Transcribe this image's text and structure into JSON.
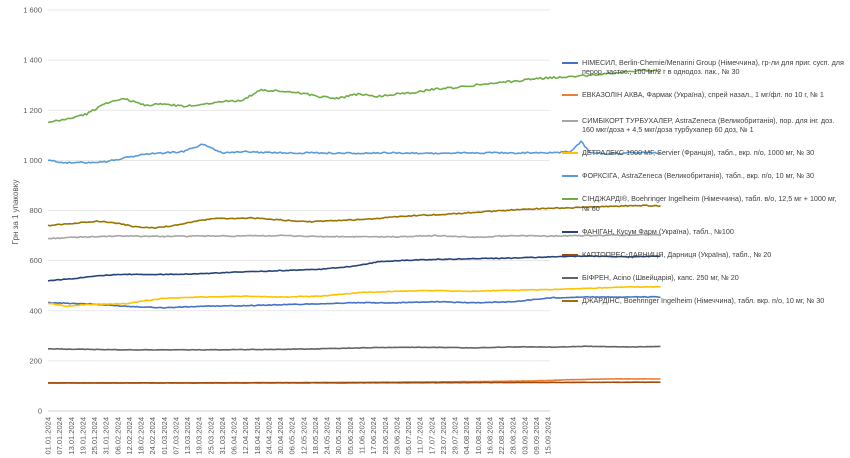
{
  "chart_data": {
    "type": "line",
    "ylabel": "Грн за 1 упаковку",
    "xlabel": "",
    "title": "",
    "ylim": [
      0,
      1600
    ],
    "yticks": [
      0,
      200,
      400,
      600,
      800,
      1000,
      1200,
      1400,
      1600
    ],
    "ytick_labels": [
      "0",
      "200",
      "400",
      "600",
      "800",
      "1 000",
      "1 200",
      "1 400",
      "1 600"
    ],
    "x_tick_labels": [
      "01.01.2024",
      "07.01.2024",
      "13.01.2024",
      "19.01.2024",
      "25.01.2024",
      "31.01.2024",
      "06.02.2024",
      "12.02.2024",
      "18.02.2024",
      "24.02.2024",
      "01.03.2024",
      "07.03.2024",
      "13.03.2024",
      "19.03.2024",
      "25.03.2024",
      "31.03.2024",
      "06.04.2024",
      "12.04.2024",
      "18.04.2024",
      "24.04.2024",
      "30.04.2024",
      "06.05.2024",
      "12.05.2024",
      "18.05.2024",
      "24.05.2024",
      "30.05.2024",
      "05.06.2024",
      "11.06.2024",
      "17.06.2024",
      "23.06.2024",
      "29.06.2024",
      "05.07.2024",
      "11.07.2024",
      "17.07.2024",
      "23.07.2024",
      "29.07.2024",
      "04.08.2024",
      "10.08.2024",
      "16.08.2024",
      "22.08.2024",
      "28.08.2024",
      "03.09.2024",
      "09.09.2024",
      "15.09.2024"
    ],
    "grid": "horizontal",
    "legend_position": "right",
    "series": [
      {
        "name": "НІМЕСИЛ, Berlin-Chemie/Menarini Group (Німеччина), гр-ли для приг. сусп. для перор. застос., 100 мг/2 г в однодоз. пак., № 30",
        "color": "#4472C4",
        "points": [
          [
            0,
            432
          ],
          [
            20,
            428
          ],
          [
            40,
            418
          ],
          [
            60,
            412
          ],
          [
            80,
            418
          ],
          [
            100,
            420
          ],
          [
            120,
            424
          ],
          [
            140,
            428
          ],
          [
            160,
            432
          ],
          [
            180,
            432
          ],
          [
            200,
            436
          ],
          [
            220,
            432
          ],
          [
            240,
            436
          ],
          [
            260,
            452
          ],
          [
            280,
            455
          ],
          [
            300,
            455
          ],
          [
            316,
            455
          ]
        ]
      },
      {
        "name": "ЕВКАЗОЛІН АКВА, Фармак (Україна), спрей назал., 1 мг/фл. по 10 г, № 1",
        "color": "#ED7D31",
        "points": [
          [
            0,
            112
          ],
          [
            50,
            112
          ],
          [
            100,
            113
          ],
          [
            150,
            114
          ],
          [
            200,
            116
          ],
          [
            230,
            118
          ],
          [
            250,
            120
          ],
          [
            270,
            125
          ],
          [
            290,
            128
          ],
          [
            316,
            128
          ]
        ]
      },
      {
        "name": "СИМБІКОРТ ТУРБУХАЛЕР, AstraZeneca (Великобританія), пор. для інг. доз. 160 мкг/доза + 4,5 мкг/доза турбухалер 60 доз, № 1",
        "color": "#A5A5A5",
        "points": [
          [
            0,
            688
          ],
          [
            20,
            695
          ],
          [
            40,
            698
          ],
          [
            60,
            697
          ],
          [
            80,
            698
          ],
          [
            100,
            698
          ],
          [
            120,
            700
          ],
          [
            140,
            696
          ],
          [
            160,
            695
          ],
          [
            180,
            695
          ],
          [
            200,
            700
          ],
          [
            220,
            693
          ],
          [
            240,
            700
          ],
          [
            260,
            698
          ],
          [
            280,
            700
          ],
          [
            300,
            702
          ],
          [
            316,
            703
          ]
        ]
      },
      {
        "name": "ДЕТРАЛЕКС 1000 МГ, Servier (Франція), табл., вкр. п/о, 1000 мг, № 30",
        "color": "#FFC000",
        "points": [
          [
            0,
            430
          ],
          [
            10,
            418
          ],
          [
            20,
            425
          ],
          [
            40,
            428
          ],
          [
            50,
            440
          ],
          [
            60,
            450
          ],
          [
            80,
            455
          ],
          [
            100,
            458
          ],
          [
            120,
            455
          ],
          [
            140,
            458
          ],
          [
            160,
            472
          ],
          [
            180,
            478
          ],
          [
            200,
            480
          ],
          [
            220,
            478
          ],
          [
            240,
            482
          ],
          [
            260,
            485
          ],
          [
            280,
            490
          ],
          [
            300,
            495
          ],
          [
            316,
            495
          ]
        ]
      },
      {
        "name": "ФОРКСІГА, AstraZeneca (Великобританія), табл., вкр. п/о, 10 мг, № 30",
        "color": "#5B9BD5",
        "points": [
          [
            0,
            1000
          ],
          [
            10,
            990
          ],
          [
            20,
            992
          ],
          [
            30,
            995
          ],
          [
            40,
            1010
          ],
          [
            50,
            1025
          ],
          [
            60,
            1030
          ],
          [
            70,
            1035
          ],
          [
            80,
            1065
          ],
          [
            90,
            1030
          ],
          [
            100,
            1035
          ],
          [
            120,
            1030
          ],
          [
            140,
            1030
          ],
          [
            160,
            1028
          ],
          [
            180,
            1030
          ],
          [
            200,
            1028
          ],
          [
            220,
            1030
          ],
          [
            240,
            1030
          ],
          [
            260,
            1030
          ],
          [
            270,
            1035
          ],
          [
            275,
            1075
          ],
          [
            280,
            1030
          ],
          [
            290,
            1025
          ],
          [
            300,
            1032
          ],
          [
            316,
            1030
          ]
        ]
      },
      {
        "name": "СІНДЖАРДІ®, Boehringer Ingelheim (Німеччина), табл. в/о, 12,5 мг + 1000 мг, № 60",
        "color": "#70AD47",
        "points": [
          [
            0,
            1150
          ],
          [
            10,
            1165
          ],
          [
            20,
            1185
          ],
          [
            30,
            1230
          ],
          [
            40,
            1245
          ],
          [
            50,
            1220
          ],
          [
            60,
            1225
          ],
          [
            70,
            1215
          ],
          [
            80,
            1225
          ],
          [
            90,
            1235
          ],
          [
            100,
            1240
          ],
          [
            110,
            1280
          ],
          [
            120,
            1275
          ],
          [
            130,
            1270
          ],
          [
            140,
            1255
          ],
          [
            150,
            1248
          ],
          [
            160,
            1265
          ],
          [
            170,
            1255
          ],
          [
            180,
            1265
          ],
          [
            190,
            1272
          ],
          [
            200,
            1285
          ],
          [
            210,
            1290
          ],
          [
            220,
            1300
          ],
          [
            230,
            1310
          ],
          [
            240,
            1315
          ],
          [
            250,
            1325
          ],
          [
            260,
            1330
          ],
          [
            270,
            1335
          ],
          [
            280,
            1340
          ],
          [
            290,
            1348
          ],
          [
            300,
            1355
          ],
          [
            310,
            1360
          ],
          [
            316,
            1355
          ]
        ]
      },
      {
        "name": "ФАНІГАН, Кусум Фарм (Україна), табл., №100",
        "color": "#264478",
        "points": [
          [
            0,
            520
          ],
          [
            15,
            530
          ],
          [
            25,
            540
          ],
          [
            40,
            545
          ],
          [
            60,
            545
          ],
          [
            80,
            548
          ],
          [
            100,
            555
          ],
          [
            120,
            560
          ],
          [
            140,
            565
          ],
          [
            160,
            580
          ],
          [
            170,
            595
          ],
          [
            180,
            600
          ],
          [
            200,
            605
          ],
          [
            220,
            608
          ],
          [
            240,
            610
          ],
          [
            260,
            615
          ],
          [
            280,
            618
          ],
          [
            300,
            615
          ],
          [
            316,
            618
          ]
        ]
      },
      {
        "name": "КАПТОПРЕС-ДАРНИЦЯ, Дарниця (Україна), табл., № 20",
        "color": "#9E480E",
        "points": [
          [
            0,
            112
          ],
          [
            100,
            112
          ],
          [
            200,
            113
          ],
          [
            316,
            115
          ]
        ]
      },
      {
        "name": "БІФРЕН, Acino (Швейцарія), капс. 250 мг, № 20",
        "color": "#636363",
        "points": [
          [
            0,
            248
          ],
          [
            40,
            244
          ],
          [
            80,
            244
          ],
          [
            120,
            246
          ],
          [
            140,
            248
          ],
          [
            160,
            252
          ],
          [
            180,
            254
          ],
          [
            200,
            254
          ],
          [
            220,
            252
          ],
          [
            240,
            256
          ],
          [
            260,
            255
          ],
          [
            280,
            258
          ],
          [
            300,
            255
          ],
          [
            316,
            258
          ]
        ]
      },
      {
        "name": "ДЖАРДІНС, Boehringer Ingelheim (Німеччина), табл. вкр. п/о, 10 мг, № 30",
        "color": "#997300",
        "points": [
          [
            0,
            740
          ],
          [
            15,
            750
          ],
          [
            25,
            758
          ],
          [
            35,
            750
          ],
          [
            45,
            735
          ],
          [
            55,
            730
          ],
          [
            65,
            740
          ],
          [
            75,
            755
          ],
          [
            85,
            768
          ],
          [
            95,
            768
          ],
          [
            105,
            770
          ],
          [
            115,
            765
          ],
          [
            125,
            760
          ],
          [
            135,
            755
          ],
          [
            145,
            758
          ],
          [
            155,
            762
          ],
          [
            165,
            765
          ],
          [
            175,
            772
          ],
          [
            185,
            778
          ],
          [
            195,
            782
          ],
          [
            205,
            785
          ],
          [
            215,
            790
          ],
          [
            225,
            795
          ],
          [
            235,
            800
          ],
          [
            245,
            805
          ],
          [
            255,
            808
          ],
          [
            265,
            810
          ],
          [
            275,
            812
          ],
          [
            285,
            815
          ],
          [
            295,
            818
          ],
          [
            305,
            820
          ],
          [
            316,
            818
          ]
        ]
      }
    ]
  }
}
